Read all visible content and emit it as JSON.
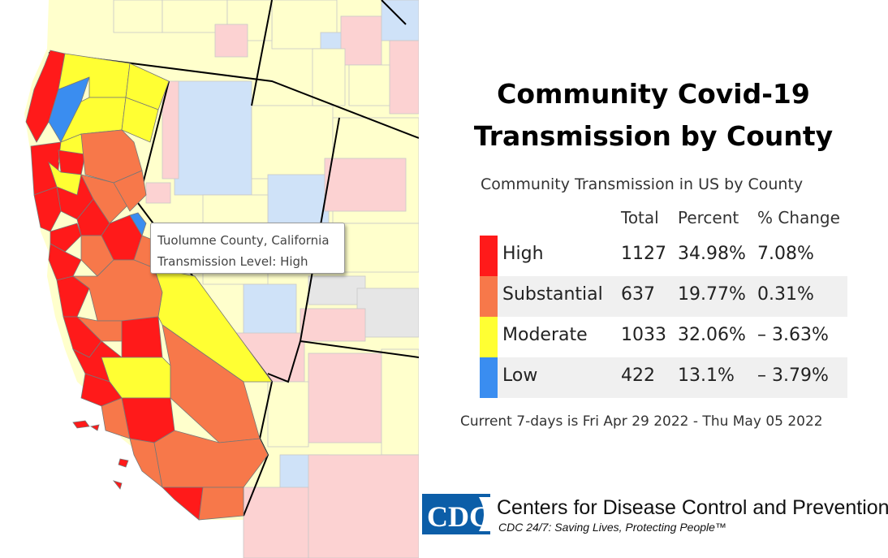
{
  "map": {
    "tooltip": {
      "county": "Tuolumne County, California",
      "level": "Transmission Level: High"
    },
    "level_colors": {
      "high": "#ff1a1a",
      "substantial": "#f7784a",
      "moderate": "#ffff33",
      "low": "#3a8df0",
      "high_faded": "#fcd2d2",
      "moderate_faded": "#ffffcc",
      "low_faded": "#cfe2f8",
      "no_data": "#e6e6e6"
    }
  },
  "title_line1": "Community Covid-19",
  "title_line2": "Transmission by County",
  "table": {
    "caption": "Community Transmission in US by County",
    "headers": {
      "total": "Total",
      "percent": "Percent",
      "change": "% Change"
    },
    "rows": [
      {
        "level": "High",
        "total": "1127",
        "percent": "34.98%",
        "change": "7.08%",
        "color": "#ff1a1a"
      },
      {
        "level": "Substantial",
        "total": "637",
        "percent": "19.77%",
        "change": "0.31%",
        "color": "#f7784a"
      },
      {
        "level": "Moderate",
        "total": "1033",
        "percent": "32.06%",
        "change": "– 3.63%",
        "color": "#ffff33"
      },
      {
        "level": "Low",
        "total": "422",
        "percent": "13.1%",
        "change": "– 3.79%",
        "color": "#3a8df0"
      }
    ]
  },
  "footnote": "Current 7-days is Fri Apr 29 2022 - Thu May 05 2022",
  "logo": {
    "text": "CDC",
    "name": "Centers for Disease Control and Prevention",
    "tagline": "CDC 24/7: Saving Lives, Protecting People™"
  }
}
